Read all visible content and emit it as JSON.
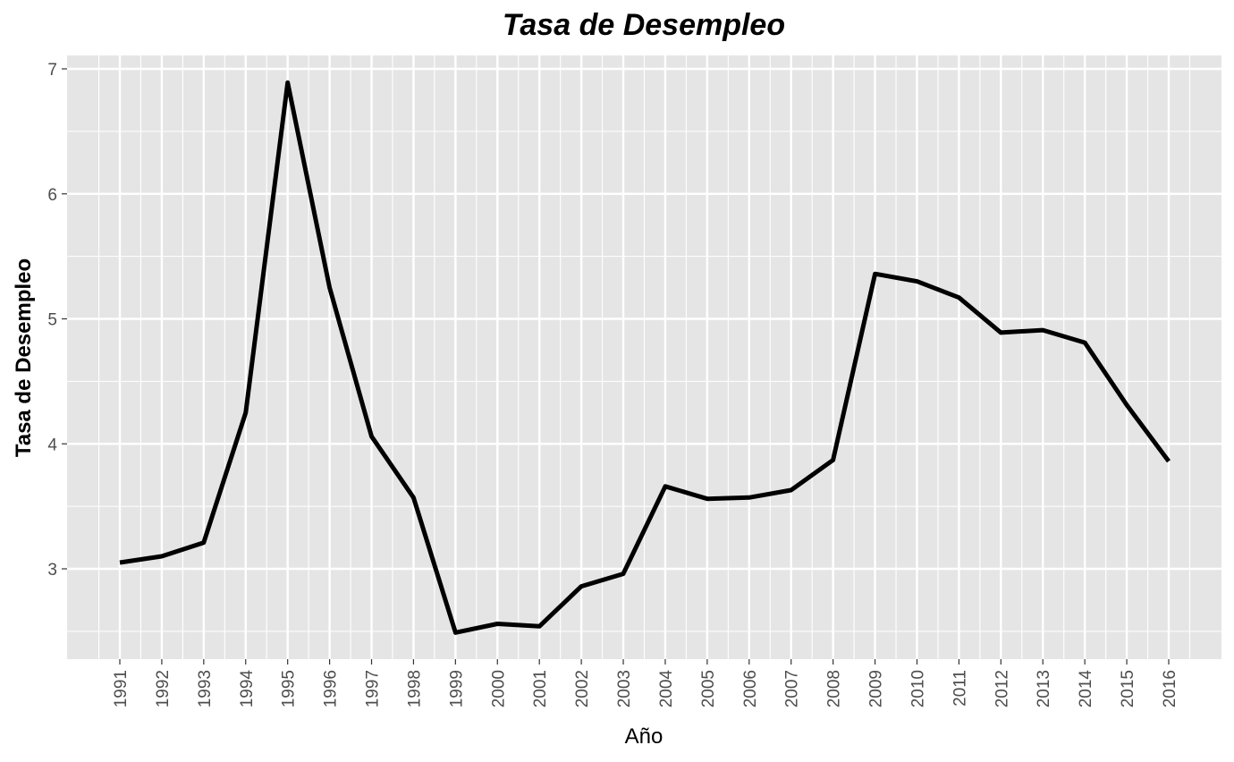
{
  "chart_data": {
    "type": "line",
    "title": "Tasa de Desempleo",
    "xlabel": "Año",
    "ylabel": "Tasa de Desempleo",
    "x": [
      1991,
      1992,
      1993,
      1994,
      1995,
      1996,
      1997,
      1998,
      1999,
      2000,
      2001,
      2002,
      2003,
      2004,
      2005,
      2006,
      2007,
      2008,
      2009,
      2010,
      2011,
      2012,
      2013,
      2014,
      2015,
      2016
    ],
    "x_tick_labels": [
      "1991",
      "1992",
      "1993",
      "1994",
      "1995",
      "1996",
      "1997",
      "1998",
      "1999",
      "2000",
      "2001",
      "2002",
      "2003",
      "2004",
      "2005",
      "2006",
      "2007",
      "2008",
      "2009",
      "2010",
      "2011",
      "2012",
      "2013",
      "2014",
      "2015",
      "2016"
    ],
    "series": [
      {
        "values": [
          3.05,
          3.1,
          3.21,
          4.25,
          6.89,
          5.25,
          4.06,
          3.57,
          2.49,
          2.56,
          2.54,
          2.86,
          2.96,
          3.66,
          3.56,
          3.57,
          3.63,
          3.87,
          5.36,
          5.3,
          5.17,
          4.89,
          4.91,
          4.81,
          4.31,
          3.86
        ],
        "color": "#000000"
      }
    ],
    "yticks": [
      3,
      4,
      5,
      6,
      7
    ],
    "ylim": [
      2.3,
      7.1
    ],
    "xlim": [
      1991,
      2016
    ],
    "grid": true,
    "background": "#e5e5e5",
    "gridline_color": "#ffffff",
    "legend": "none"
  }
}
